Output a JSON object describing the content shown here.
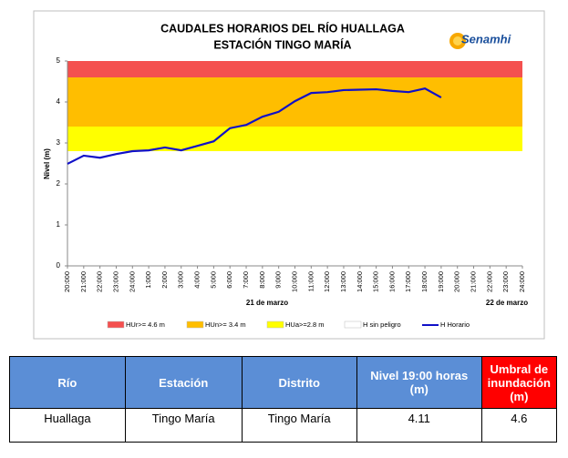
{
  "chart_data": {
    "type": "line",
    "title": [
      "CAUDALES HORARIOS DEL RÍO HUALLAGA",
      "ESTACIÓN TINGO MARÍA"
    ],
    "logo": "Senamhi",
    "y_label": "Nivel (m)",
    "categories": [
      "20:000",
      "21:000",
      "22:000",
      "23:000",
      "24:000",
      "1:000",
      "2:000",
      "3:000",
      "4:000",
      "5:000",
      "6:000",
      "7:000",
      "8:000",
      "9:000",
      "10:000",
      "11:000",
      "12:000",
      "13:000",
      "14:000",
      "15:000",
      "16:000",
      "17:000",
      "18:000",
      "19:000",
      "20:000",
      "21:000",
      "22:000",
      "23:000",
      "24:000"
    ],
    "annotations": [
      "21 de marzo",
      "22 de marzo"
    ],
    "bands": [
      {
        "name": "HUr>= 4.6 m",
        "color": "#f4504f",
        "from": 4.6,
        "to": 5
      },
      {
        "name": "HUn>= 3.4 m",
        "color": "#ffbe00",
        "from": 3.4,
        "to": 4.6
      },
      {
        "name": "HUa>=2.8 m",
        "color": "#ffff00",
        "from": 2.8,
        "to": 3.4
      },
      {
        "name": "H sin peligro",
        "color": "#ffffff",
        "from": 0,
        "to": 2.8
      }
    ],
    "series": [
      {
        "name": "H Horario",
        "color": "#1010c8",
        "values": [
          2.49,
          2.69,
          2.64,
          2.73,
          2.8,
          2.82,
          2.89,
          2.82,
          2.93,
          3.04,
          3.36,
          3.44,
          3.64,
          3.76,
          4.02,
          4.22,
          4.24,
          4.29,
          4.3,
          4.31,
          4.27,
          4.24,
          4.33,
          4.11,
          null,
          null,
          null,
          null,
          null
        ]
      }
    ],
    "ylim": [
      0,
      5
    ],
    "yticks": [
      0,
      1,
      2,
      3,
      4,
      5
    ]
  },
  "table": {
    "header": [
      "Río",
      "Estación",
      "Distrito",
      "Nivel 19:00 horas (m)",
      "Umbral de inundación (m)"
    ],
    "rows": [
      [
        "Huallaga",
        "Tingo María",
        "Tingo María",
        4.11,
        4.6
      ]
    ]
  }
}
